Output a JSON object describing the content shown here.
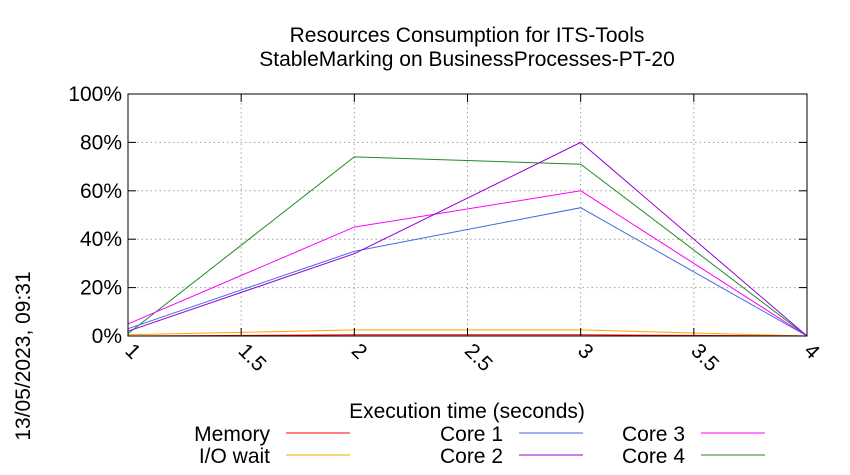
{
  "chart_data": {
    "type": "line",
    "title": "Resources Consumption for ITS-Tools",
    "subtitle": "StableMarking on BusinessProcesses-PT-20",
    "xlabel": "Execution time (seconds)",
    "ylabel": "",
    "xlim": [
      1,
      4
    ],
    "ylim": [
      0,
      100
    ],
    "x_ticks": [
      1,
      1.5,
      2,
      2.5,
      3,
      3.5,
      4
    ],
    "x_tick_labels": [
      "1",
      "1.5",
      "2",
      "2.5",
      "3",
      "3.5",
      "4"
    ],
    "y_ticks": [
      0,
      20,
      40,
      60,
      80,
      100
    ],
    "y_tick_labels": [
      "0%",
      "20%",
      "40%",
      "60%",
      "80%",
      "100%"
    ],
    "grid": true,
    "legend_position": "bottom",
    "timestamp": "13/05/2023, 09:31",
    "x": [
      1,
      2,
      3,
      4
    ],
    "series": [
      {
        "name": "Memory",
        "color": "#ff0000",
        "values": [
          0,
          0.5,
          0.5,
          0
        ]
      },
      {
        "name": "I/O wait",
        "color": "#ffa500",
        "values": [
          0.5,
          2.5,
          2.5,
          0
        ]
      },
      {
        "name": "Core 1",
        "color": "#4169e1",
        "values": [
          3,
          35,
          53,
          0
        ]
      },
      {
        "name": "Core 2",
        "color": "#9400d3",
        "values": [
          2,
          34,
          80,
          0
        ]
      },
      {
        "name": "Core 3",
        "color": "#ff00ff",
        "values": [
          5,
          45,
          60,
          0
        ]
      },
      {
        "name": "Core 4",
        "color": "#228b22",
        "values": [
          1,
          74,
          71,
          0
        ]
      }
    ]
  }
}
